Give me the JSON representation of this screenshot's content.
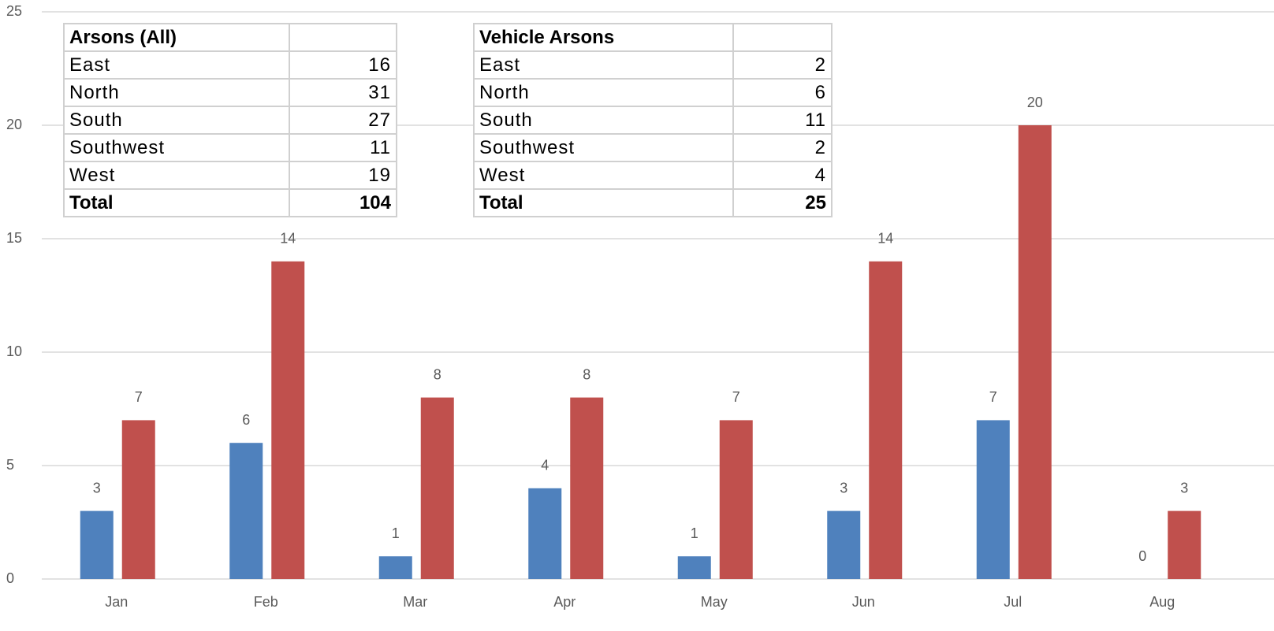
{
  "chart_data": {
    "type": "bar",
    "categories": [
      "Jan",
      "Feb",
      "Mar",
      "Apr",
      "May",
      "Jun",
      "Jul",
      "Aug"
    ],
    "series": [
      {
        "color": "#4f81bd",
        "values": [
          3,
          6,
          1,
          4,
          1,
          3,
          7,
          0
        ]
      },
      {
        "color": "#c0504d",
        "values": [
          7,
          14,
          8,
          8,
          7,
          14,
          20,
          3
        ]
      }
    ],
    "ylim": [
      0,
      25
    ],
    "yticks": [
      0,
      5,
      10,
      15,
      20,
      25
    ],
    "grid": true
  },
  "tables": [
    {
      "title": "Arsons (All)",
      "rows": [
        [
          "East",
          16
        ],
        [
          "North",
          31
        ],
        [
          "South",
          27
        ],
        [
          "Southwest",
          11
        ],
        [
          "West",
          19
        ]
      ],
      "total": [
        "Total",
        104
      ]
    },
    {
      "title": "Vehicle Arsons",
      "rows": [
        [
          "East",
          2
        ],
        [
          "North",
          6
        ],
        [
          "South",
          11
        ],
        [
          "Southwest",
          2
        ],
        [
          "West",
          4
        ]
      ],
      "total": [
        "Total",
        25
      ]
    }
  ]
}
